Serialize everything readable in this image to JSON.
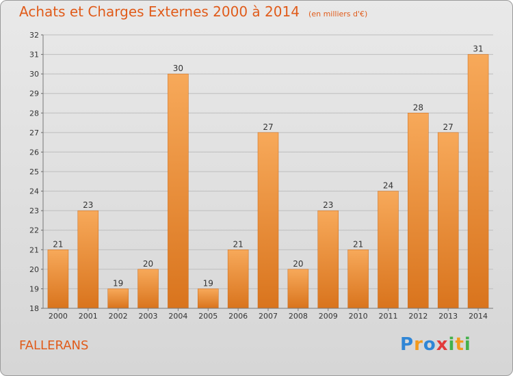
{
  "header": {
    "title": "Achats et Charges Externes 2000 à 2014",
    "subtitle": "(en milliers d'€)"
  },
  "footer": {
    "commune": "FALLERANS",
    "logo_text": "Proxiti"
  },
  "colors": {
    "title": "#e05b1a",
    "bar_top": "#f7a95a",
    "bar_bottom": "#d9741d",
    "grid": "#bdbdbd"
  },
  "chart_data": {
    "type": "bar",
    "title": "Achats et Charges Externes 2000 à 2014",
    "xlabel": "",
    "ylabel": "",
    "categories": [
      "2000",
      "2001",
      "2002",
      "2003",
      "2004",
      "2005",
      "2006",
      "2007",
      "2008",
      "2009",
      "2010",
      "2011",
      "2012",
      "2013",
      "2014"
    ],
    "values": [
      21,
      23,
      19,
      20,
      30,
      19,
      21,
      27,
      20,
      23,
      21,
      24,
      28,
      27,
      31
    ],
    "ylim": [
      18,
      32
    ],
    "yticks": [
      18,
      19,
      20,
      21,
      22,
      23,
      24,
      25,
      26,
      27,
      28,
      29,
      30,
      31,
      32
    ],
    "grid": true,
    "data_labels": true
  }
}
